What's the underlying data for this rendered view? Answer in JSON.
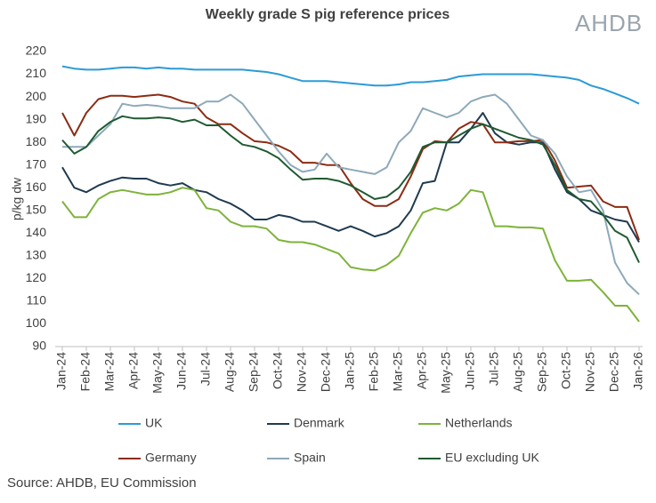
{
  "chart_data": {
    "type": "line",
    "title": "Weekly grade S pig reference prices",
    "logo": "AHDB",
    "y_label": "p/kg dw",
    "source": "Source: AHDB, EU Commission",
    "categories": [
      "Jan-24",
      null,
      "Feb-24",
      null,
      "Mar-24",
      null,
      "Apr-24",
      null,
      "May-24",
      null,
      "Jun-24",
      null,
      "Jul-24",
      null,
      "Aug-24",
      null,
      "Sep-24",
      null,
      "Oct-24",
      null,
      "Nov-24",
      null,
      "Dec-24",
      null,
      "Jan-25",
      null,
      "Feb-25",
      null,
      "Mar-25",
      null,
      "Apr-25",
      null,
      "May-25",
      null,
      "Jun-25",
      null,
      "Jul-25",
      null,
      "Aug-25",
      null,
      "Sep-25",
      null,
      "Oct-25",
      null,
      "Nov-25",
      null,
      "Dec-25",
      null,
      "Jan-26"
    ],
    "ylim": [
      90,
      220
    ],
    "yticks": [
      90,
      100,
      110,
      120,
      130,
      140,
      150,
      160,
      170,
      180,
      190,
      200,
      210,
      220
    ],
    "grid": false,
    "series": [
      {
        "name": "UK",
        "color": "#2b9bd6",
        "values": [
          213.5,
          212.5,
          212,
          212,
          212.5,
          213,
          213,
          212.5,
          213,
          212.5,
          212.5,
          212,
          212,
          212,
          212,
          212,
          211.5,
          211,
          210,
          208.5,
          207,
          207,
          207,
          206.5,
          206,
          205.5,
          205,
          205,
          205.5,
          206.5,
          206.5,
          207,
          207.5,
          209,
          209.5,
          210,
          210,
          210,
          210,
          210,
          209.5,
          209,
          208.5,
          207.5,
          205,
          203.5,
          201.5,
          199.5,
          197
        ]
      },
      {
        "name": "Denmark",
        "color": "#1f3a4f",
        "values": [
          169,
          160,
          158,
          161,
          163,
          164.5,
          164,
          164,
          162,
          161,
          162,
          159,
          158,
          155,
          153,
          150,
          146,
          146,
          148,
          147,
          145,
          145,
          143,
          141,
          143,
          141,
          138.5,
          140,
          143,
          150,
          162,
          163,
          180,
          180,
          186,
          193,
          184,
          180,
          179,
          180,
          180,
          168,
          158,
          155,
          150,
          148,
          146,
          145,
          136
        ]
      },
      {
        "name": "Netherlands",
        "color": "#7db33a",
        "values": [
          154,
          147,
          147,
          155,
          158,
          159,
          158,
          157,
          157,
          158,
          160,
          159,
          151,
          150,
          145,
          143,
          143,
          142,
          137,
          136,
          136,
          135,
          133,
          131,
          125,
          124,
          123.5,
          126,
          130,
          140,
          149,
          151,
          150,
          153,
          159,
          158,
          143,
          143,
          142.5,
          142.5,
          142,
          128,
          119,
          119,
          119.5,
          114,
          108,
          108,
          101
        ]
      },
      {
        "name": "Germany",
        "color": "#8b2c14",
        "values": [
          193,
          183,
          193,
          199,
          200.5,
          200.5,
          200,
          200.5,
          201,
          200,
          198,
          197,
          191,
          188,
          188,
          184,
          180.5,
          180,
          178.5,
          176,
          171,
          171,
          170,
          170,
          162,
          155,
          152,
          152,
          155,
          165,
          177,
          180.5,
          180,
          186,
          189,
          188,
          180,
          180,
          180.5,
          180.5,
          181,
          172,
          160,
          160.5,
          161,
          154,
          151.5,
          151.5,
          137
        ]
      },
      {
        "name": "Spain",
        "color": "#8ea9b9",
        "values": [
          178,
          178,
          178,
          183,
          188,
          197,
          196,
          196.5,
          196,
          195,
          195,
          195,
          198,
          198,
          201,
          197,
          190,
          183,
          176,
          170,
          167,
          168,
          175,
          169,
          168,
          167,
          166,
          169,
          180,
          185,
          195,
          193,
          191,
          193,
          198,
          200,
          201,
          197,
          190,
          183,
          181,
          175,
          165,
          158,
          159,
          150,
          127,
          118,
          113
        ]
      },
      {
        "name": "EU excluding UK",
        "color": "#1f5a32",
        "values": [
          181,
          175,
          178,
          185,
          189,
          191.5,
          190.5,
          190.5,
          191,
          190.5,
          189,
          190,
          187.5,
          187.5,
          183,
          179,
          178,
          176,
          173,
          168,
          163.5,
          164,
          164,
          163,
          161,
          158,
          155,
          156,
          160,
          167,
          178,
          180,
          180,
          183,
          186,
          188,
          186,
          184,
          182,
          181,
          179,
          170,
          159,
          155,
          154,
          148,
          141,
          138,
          127
        ]
      }
    ]
  }
}
